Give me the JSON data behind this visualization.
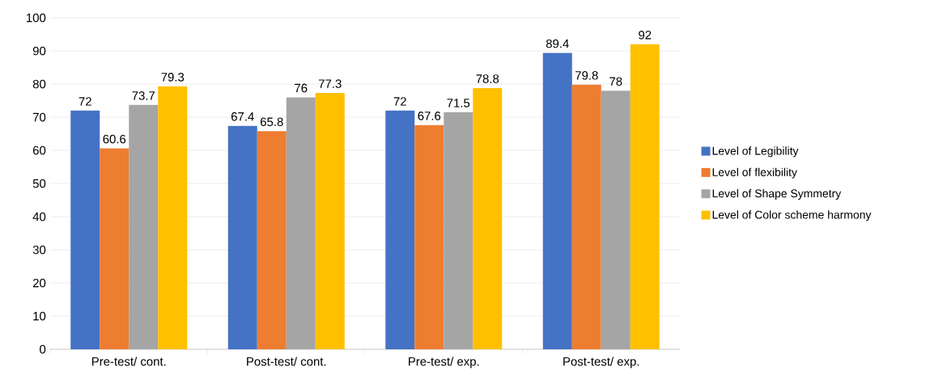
{
  "chart_data": {
    "type": "bar",
    "categories": [
      "Pre-test/ cont.",
      "Post-test/ cont.",
      "Pre-test/ exp.",
      "Post-test/ exp."
    ],
    "series": [
      {
        "name": "Level of Legibility",
        "color": "#4472c4",
        "values": [
          72,
          67.4,
          72,
          89.4
        ]
      },
      {
        "name": "Level of flexibility",
        "color": "#ed7d31",
        "values": [
          60.6,
          65.8,
          67.6,
          79.8
        ]
      },
      {
        "name": "Level of Shape Symmetry",
        "color": "#a5a5a5",
        "values": [
          73.7,
          76,
          71.5,
          78
        ]
      },
      {
        "name": "Level of Color scheme harmony",
        "color": "#ffc000",
        "values": [
          79.3,
          77.3,
          78.8,
          92
        ]
      }
    ],
    "ylim": [
      0,
      100
    ],
    "yticks": [
      0,
      10,
      20,
      30,
      40,
      50,
      60,
      70,
      80,
      90,
      100
    ],
    "grid": "y",
    "legend": "right",
    "data_labels": true
  }
}
